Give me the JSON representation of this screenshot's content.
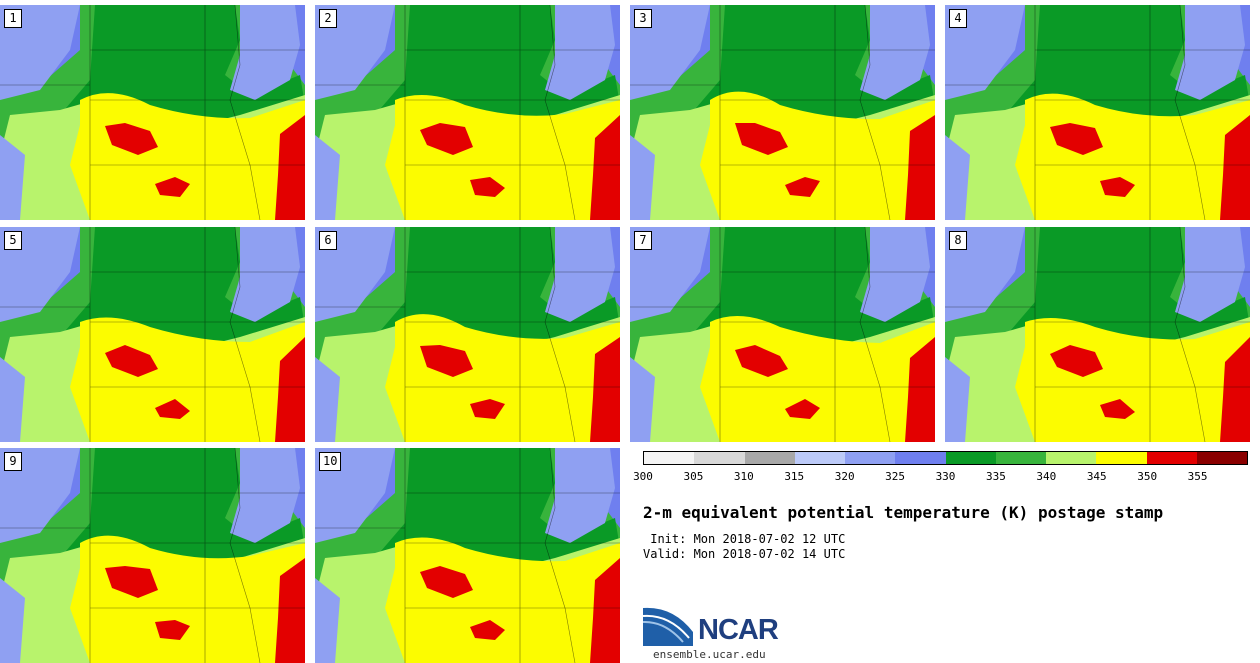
{
  "title": "2-m equivalent potential temperature (K) postage stamp",
  "init": " Init: Mon 2018-07-02 12 UTC",
  "valid": "Valid: Mon 2018-07-02 14 UTC",
  "members": [
    "1",
    "2",
    "3",
    "4",
    "5",
    "6",
    "7",
    "8",
    "9",
    "10"
  ],
  "colorbar": {
    "ticks": [
      "300",
      "305",
      "310",
      "315",
      "320",
      "325",
      "330",
      "335",
      "340",
      "345",
      "350",
      "355"
    ],
    "colors": [
      "#f4f4f4",
      "#d8d8d8",
      "#a8a8a8",
      "#bccaf8",
      "#8fa0f2",
      "#6f7fef",
      "#0a9a26",
      "#38b43c",
      "#b8f36c",
      "#fcfc00",
      "#e30000",
      "#8a0000"
    ]
  },
  "logo": {
    "name": "NCAR",
    "url": "ensemble.ucar.edu"
  }
}
